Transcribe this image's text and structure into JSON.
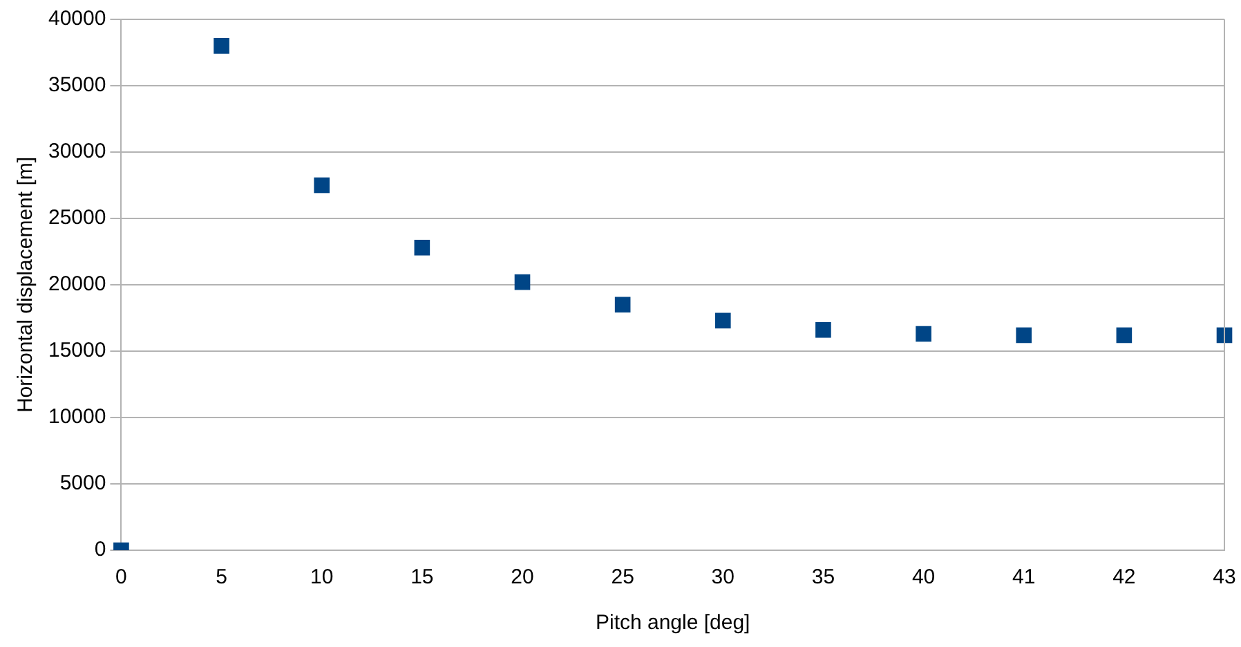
{
  "chart_data": {
    "type": "scatter",
    "xlabel": "Pitch angle [deg]",
    "ylabel": "Horizontal displacement [m]",
    "categories": [
      "0",
      "5",
      "10",
      "15",
      "20",
      "25",
      "30",
      "35",
      "40",
      "41",
      "42",
      "43"
    ],
    "series": [
      {
        "color": "#004586",
        "values": [
          0,
          38000,
          27500,
          22800,
          20200,
          18500,
          17300,
          16600,
          16300,
          16200,
          16200,
          16200
        ]
      }
    ],
    "ylim": [
      0,
      40000
    ],
    "yticks": [
      0,
      5000,
      10000,
      15000,
      20000,
      25000,
      30000,
      35000,
      40000
    ],
    "grid": "y",
    "legend": false,
    "marker": "square"
  }
}
